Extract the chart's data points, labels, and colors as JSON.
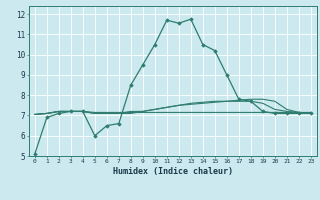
{
  "xlabel": "Humidex (Indice chaleur)",
  "bg_color": "#cce9f0",
  "line_color": "#2e7d6e",
  "grid_color": "#ffffff",
  "xlim": [
    -0.5,
    23.5
  ],
  "ylim": [
    5,
    12.4
  ],
  "yticks": [
    5,
    6,
    7,
    8,
    9,
    10,
    11,
    12
  ],
  "xticks": [
    0,
    1,
    2,
    3,
    4,
    5,
    6,
    7,
    8,
    9,
    10,
    11,
    12,
    13,
    14,
    15,
    16,
    17,
    18,
    19,
    20,
    21,
    22,
    23
  ],
  "series": [
    {
      "x": [
        0,
        1,
        2,
        3,
        4,
        5,
        6,
        7,
        8,
        9,
        10,
        11,
        12,
        13,
        14,
        15,
        16,
        17,
        18,
        19,
        20,
        21,
        22,
        23
      ],
      "y": [
        5.1,
        6.9,
        7.1,
        7.2,
        7.2,
        6.0,
        6.5,
        6.6,
        8.5,
        9.5,
        10.5,
        11.7,
        11.55,
        11.75,
        10.5,
        10.2,
        9.0,
        7.8,
        7.7,
        7.2,
        7.1,
        7.1,
        7.1,
        7.1
      ],
      "marker": true
    },
    {
      "x": [
        0,
        1,
        2,
        3,
        4,
        5,
        6,
        7,
        8,
        9,
        10,
        11,
        12,
        13,
        14,
        15,
        16,
        17,
        18,
        19,
        20,
        21,
        22,
        23
      ],
      "y": [
        7.05,
        7.1,
        7.2,
        7.2,
        7.2,
        7.15,
        7.15,
        7.15,
        7.15,
        7.15,
        7.15,
        7.15,
        7.15,
        7.15,
        7.15,
        7.15,
        7.15,
        7.15,
        7.15,
        7.15,
        7.15,
        7.15,
        7.15,
        7.15
      ],
      "marker": false
    },
    {
      "x": [
        0,
        1,
        2,
        3,
        4,
        5,
        6,
        7,
        8,
        9,
        10,
        11,
        12,
        13,
        14,
        15,
        16,
        17,
        18,
        19,
        20,
        21,
        22,
        23
      ],
      "y": [
        7.05,
        7.1,
        7.2,
        7.2,
        7.2,
        7.1,
        7.1,
        7.1,
        7.1,
        7.2,
        7.3,
        7.4,
        7.5,
        7.55,
        7.6,
        7.65,
        7.7,
        7.75,
        7.8,
        7.8,
        7.7,
        7.3,
        7.15,
        7.1
      ],
      "marker": false
    },
    {
      "x": [
        0,
        1,
        2,
        3,
        4,
        5,
        6,
        7,
        8,
        9,
        10,
        11,
        12,
        13,
        14,
        15,
        16,
        17,
        18,
        19,
        20,
        21,
        22,
        23
      ],
      "y": [
        7.05,
        7.1,
        7.2,
        7.2,
        7.2,
        7.1,
        7.1,
        7.1,
        7.2,
        7.2,
        7.3,
        7.4,
        7.5,
        7.6,
        7.65,
        7.7,
        7.7,
        7.7,
        7.7,
        7.6,
        7.3,
        7.2,
        7.15,
        7.1
      ],
      "marker": false
    }
  ]
}
